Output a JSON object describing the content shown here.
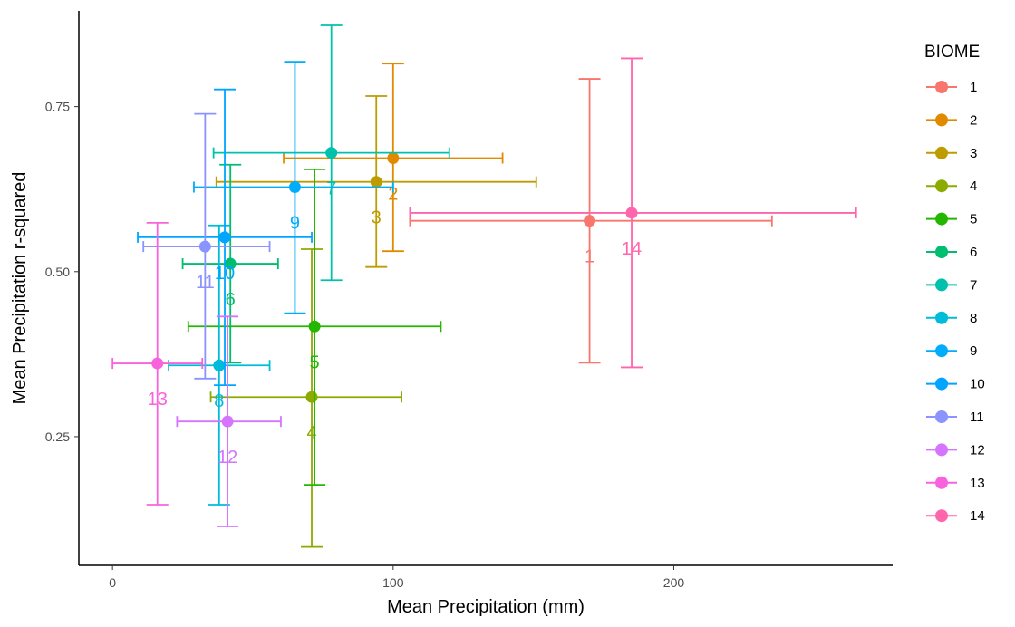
{
  "chart_data": {
    "type": "scatter",
    "xlabel": "Mean Precipitation (mm)",
    "ylabel": "Mean Precipitation r-squared",
    "xlim": [
      -12,
      278
    ],
    "ylim": [
      0.055,
      0.895
    ],
    "xticks": [
      0,
      100,
      200
    ],
    "yticks": [
      0.25,
      0.5,
      0.75
    ],
    "xtick_labels": [
      "0",
      "100",
      "200"
    ],
    "ytick_labels": [
      "0.25",
      "0.50",
      "0.75"
    ],
    "grid": false,
    "legend": {
      "title": "BIOME",
      "position": "right"
    },
    "series": [
      {
        "name": "1",
        "color": "#F8766D",
        "x": 170,
        "y": 0.577,
        "xmin": 106,
        "xmax": 235,
        "ymin": 0.362,
        "ymax": 0.792
      },
      {
        "name": "2",
        "color": "#E18A00",
        "x": 100,
        "y": 0.672,
        "xmin": 61,
        "xmax": 139,
        "ymin": 0.531,
        "ymax": 0.815
      },
      {
        "name": "3",
        "color": "#BE9C00",
        "x": 94,
        "y": 0.636,
        "xmin": 37,
        "xmax": 151,
        "ymin": 0.507,
        "ymax": 0.766
      },
      {
        "name": "4",
        "color": "#8CAB00",
        "x": 71,
        "y": 0.31,
        "xmin": 35,
        "xmax": 103,
        "ymin": 0.083,
        "ymax": 0.534
      },
      {
        "name": "5",
        "color": "#24B700",
        "x": 72,
        "y": 0.417,
        "xmin": 27,
        "xmax": 117,
        "ymin": 0.177,
        "ymax": 0.655
      },
      {
        "name": "6",
        "color": "#00BE70",
        "x": 42,
        "y": 0.512,
        "xmin": 25,
        "xmax": 59,
        "ymin": 0.362,
        "ymax": 0.662
      },
      {
        "name": "7",
        "color": "#00C1AB",
        "x": 78,
        "y": 0.68,
        "xmin": 36,
        "xmax": 120,
        "ymin": 0.487,
        "ymax": 0.873
      },
      {
        "name": "8",
        "color": "#00BBDA",
        "x": 38,
        "y": 0.358,
        "xmin": 20,
        "xmax": 56,
        "ymin": 0.147,
        "ymax": 0.57
      },
      {
        "name": "9",
        "color": "#00ACFC",
        "x": 65,
        "y": 0.628,
        "xmin": 29,
        "xmax": 100,
        "ymin": 0.437,
        "ymax": 0.818
      },
      {
        "name": "10",
        "color": "#00A5FF",
        "x": 40,
        "y": 0.552,
        "xmin": 9,
        "xmax": 71,
        "ymin": 0.328,
        "ymax": 0.776
      },
      {
        "name": "11",
        "color": "#8B93FF",
        "x": 33,
        "y": 0.538,
        "xmin": 11,
        "xmax": 56,
        "ymin": 0.338,
        "ymax": 0.739
      },
      {
        "name": "12",
        "color": "#D575FE",
        "x": 41,
        "y": 0.273,
        "xmin": 23,
        "xmax": 60,
        "ymin": 0.114,
        "ymax": 0.432
      },
      {
        "name": "13",
        "color": "#F962DD",
        "x": 16,
        "y": 0.361,
        "xmin": 0,
        "xmax": 32,
        "ymin": 0.147,
        "ymax": 0.574
      },
      {
        "name": "14",
        "color": "#FF65AC",
        "x": 185,
        "y": 0.589,
        "xmin": 106,
        "xmax": 265,
        "ymin": 0.355,
        "ymax": 0.823
      }
    ]
  }
}
